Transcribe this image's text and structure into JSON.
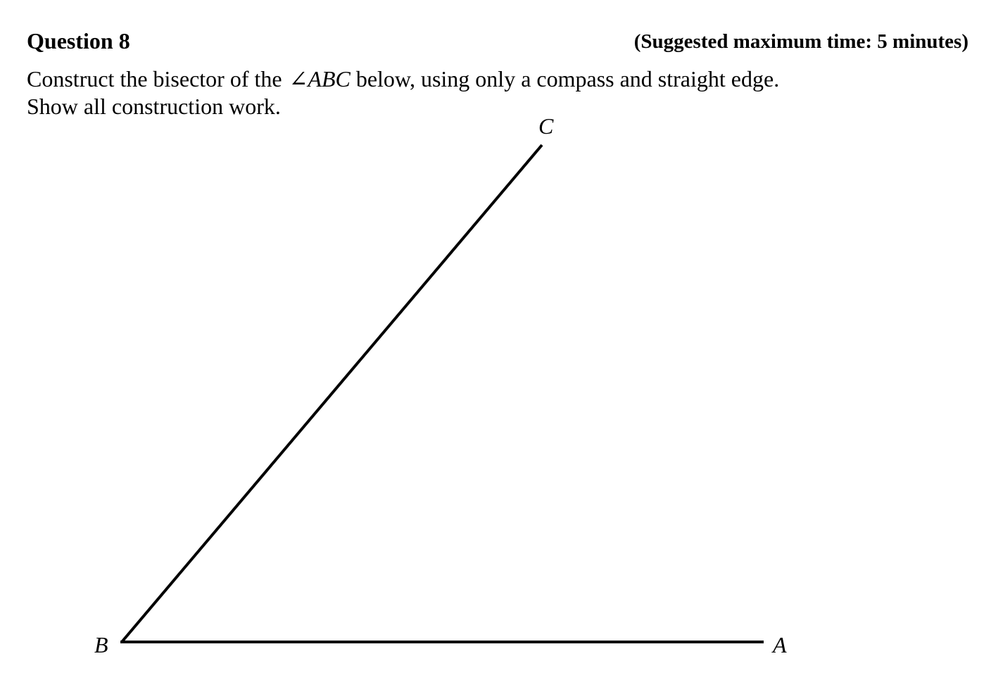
{
  "header": {
    "question_label": "Question 8",
    "time_note": "(Suggested maximum time: 5 minutes)"
  },
  "instructions": {
    "line1_before": "Construct the bisector of the",
    "angle_name": "∠ABC",
    "line1_after": "below, using only a compass and straight edge.",
    "line2": "Show all construction work."
  },
  "figure": {
    "label_a": "A",
    "label_b": "B",
    "label_c": "C"
  }
}
